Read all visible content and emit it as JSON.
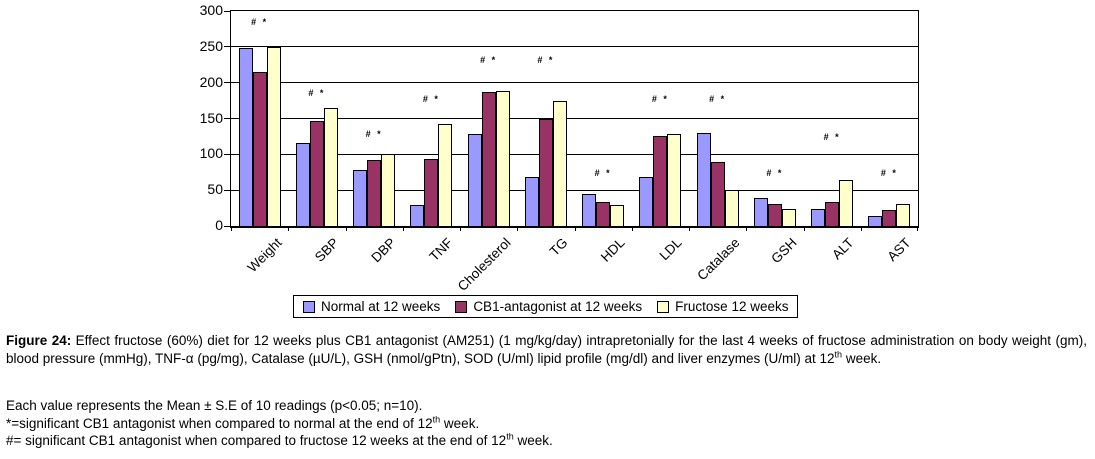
{
  "chart_data": {
    "type": "bar",
    "title": "",
    "xlabel": "",
    "ylabel": "",
    "ylim": [
      0,
      300
    ],
    "ytick_step": 50,
    "yticks": [
      "300",
      "250",
      "200",
      "150",
      "100",
      "50",
      "0"
    ],
    "grid": true,
    "legend_position": "bottom",
    "categories": [
      "Weight",
      "SBP",
      "DBP",
      "TNF",
      "Cholesterol",
      "TG",
      "HDL",
      "LDL",
      "Catalase",
      "GSH",
      "ALT",
      "AST"
    ],
    "series": [
      {
        "name": "Normal  at 12 weeks",
        "color": "#9999FF",
        "values": [
          248,
          116,
          78,
          30,
          128,
          68,
          45,
          69,
          130,
          39,
          24,
          14
        ]
      },
      {
        "name": "CB1-antagonist at 12 weeks",
        "color": "#993366",
        "values": [
          215,
          147,
          92,
          93,
          187,
          150,
          34,
          125,
          90,
          31,
          33,
          23
        ]
      },
      {
        "name": "Fructose 12 weeks",
        "color": "#FFFFCC",
        "values": [
          250,
          165,
          100,
          142,
          189,
          174,
          29,
          128,
          50,
          24,
          64,
          31
        ]
      }
    ],
    "annotations": [
      {
        "text": "# *",
        "y": 283
      },
      {
        "text": "# *",
        "y": 184
      },
      {
        "text": "# *",
        "y": 127
      },
      {
        "text": "# *",
        "y": 176
      },
      {
        "text": "# *",
        "y": 230
      },
      {
        "text": "# *",
        "y": 230
      },
      {
        "text": "# *",
        "y": 73
      },
      {
        "text": "# *",
        "y": 176
      },
      {
        "text": "# *",
        "y": 176
      },
      {
        "text": "# *",
        "y": 73
      },
      {
        "text": "# *",
        "y": 123
      },
      {
        "text": "# *",
        "y": 73
      }
    ]
  },
  "figure": {
    "caption": {
      "label": "Figure 24:",
      "body": " Effect fructose (60%) diet for 12 weeks plus CB1 antagonist (AM251) (1 mg/kg/day) intrapretonially for the last 4 weeks of fructose administration on body weight (gm), blood pressure (mmHg), TNF-α (pg/mg), Catalase (µU/L), GSH (nmol/gPtn), SOD (U/ml) lipid profile (mg/dl) and liver enzymes (U/ml) at 12",
      "sup": "th",
      "tail": " week."
    },
    "notes": [
      {
        "pre": "Each value represents the Mean ± S.E of 10 readings (p<0.05; n=10).",
        "sup": "",
        "tail": ""
      },
      {
        "pre": "*=significant CB1 antagonist when compared to normal at the end of 12",
        "sup": "th",
        "tail": " week."
      },
      {
        "pre": "#= significant CB1 antagonist when compared to fructose 12 weeks at the end of 12",
        "sup": "th",
        "tail": " week."
      }
    ]
  }
}
